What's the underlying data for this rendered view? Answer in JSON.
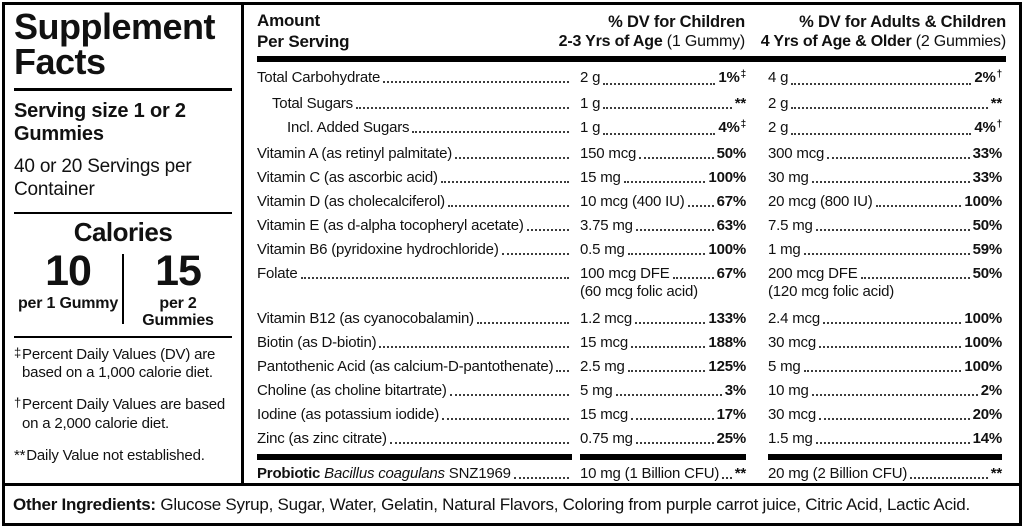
{
  "colors": {
    "ink": "#111111",
    "paper": "#ffffff"
  },
  "left_panel": {
    "title": "Supplement Facts",
    "serving_size": "Serving size 1 or 2 Gummies",
    "servings": "40 or 20 Servings per Container",
    "calories": {
      "title": "Calories",
      "columns": [
        {
          "value": "10",
          "caption": "per 1 Gummy"
        },
        {
          "value": "15",
          "caption": "per 2 Gummies"
        }
      ]
    },
    "footnotes": [
      {
        "symbol": "‡",
        "text": "Percent Daily Values (DV) are based on a 1,000 calorie diet."
      },
      {
        "symbol": "†",
        "text": "Percent Daily Values are based on a 2,000 calorie diet."
      },
      {
        "symbol": "**",
        "text": "Daily Value not established."
      }
    ]
  },
  "table": {
    "header": {
      "amount_line1": "Amount",
      "amount_line2": "Per Serving",
      "children_line1": "% DV for Children",
      "children_line2_bold": "2-3 Yrs of Age",
      "children_line2_normal": "(1 Gummy)",
      "adults_line1": "% DV for Adults & Children",
      "adults_line2_bold": "4 Yrs of Age & Older",
      "adults_line2_normal": "(2 Gummies)"
    },
    "rows": [
      {
        "name": "Total Carbohydrate",
        "indent": 0,
        "child": {
          "amount": "2 g",
          "pct": "1%",
          "sup": "‡"
        },
        "adult": {
          "amount": "4 g",
          "pct": "2%",
          "sup": "†"
        }
      },
      {
        "name": "Total Sugars",
        "indent": 1,
        "child": {
          "amount": "1 g",
          "pct": "**"
        },
        "adult": {
          "amount": "2 g",
          "pct": "**"
        }
      },
      {
        "name": "Incl. Added Sugars",
        "indent": 2,
        "child": {
          "amount": "1 g",
          "pct": "4%",
          "sup": "‡"
        },
        "adult": {
          "amount": "2 g",
          "pct": "4%",
          "sup": "†"
        }
      },
      {
        "name": "Vitamin A (as retinyl palmitate)",
        "child": {
          "amount": "150 mcg",
          "pct": "50%"
        },
        "adult": {
          "amount": "300 mcg",
          "pct": "33%"
        }
      },
      {
        "name": "Vitamin C (as ascorbic acid)",
        "child": {
          "amount": "15 mg",
          "pct": "100%"
        },
        "adult": {
          "amount": "30 mg",
          "pct": "33%"
        }
      },
      {
        "name": "Vitamin D (as cholecalciferol)",
        "child": {
          "amount": "10 mcg (400 IU)",
          "pct": "67%"
        },
        "adult": {
          "amount": "20 mcg (800 IU)",
          "pct": "100%"
        }
      },
      {
        "name": "Vitamin E (as d-alpha tocopheryl acetate)",
        "child": {
          "amount": "3.75 mg",
          "pct": "63%"
        },
        "adult": {
          "amount": "7.5 mg",
          "pct": "50%"
        }
      },
      {
        "name": "Vitamin B6 (pyridoxine hydrochloride)",
        "child": {
          "amount": "0.5 mg",
          "pct": "100%"
        },
        "adult": {
          "amount": "1 mg",
          "pct": "59%"
        }
      },
      {
        "name": "Folate",
        "child": {
          "amount": "100 mcg DFE",
          "pct": "67%",
          "sub": "(60 mcg folic acid)"
        },
        "adult": {
          "amount": "200 mcg DFE",
          "pct": "50%",
          "sub": "(120 mcg folic acid)"
        }
      },
      {
        "name": "Vitamin B12 (as cyanocobalamin)",
        "gap_before": true,
        "child": {
          "amount": "1.2 mcg",
          "pct": "133%"
        },
        "adult": {
          "amount": "2.4 mcg",
          "pct": "100%"
        }
      },
      {
        "name": "Biotin (as D-biotin)",
        "child": {
          "amount": "15 mcg",
          "pct": "188%"
        },
        "adult": {
          "amount": "30 mcg",
          "pct": "100%"
        }
      },
      {
        "name": "Pantothenic Acid (as calcium-D-pantothenate)",
        "child": {
          "amount": "2.5 mg",
          "pct": "125%"
        },
        "adult": {
          "amount": "5 mg",
          "pct": "100%"
        }
      },
      {
        "name": "Choline (as choline bitartrate)",
        "child": {
          "amount": "5 mg",
          "pct": "3%"
        },
        "adult": {
          "amount": "10 mg",
          "pct": "2%"
        }
      },
      {
        "name": "Iodine (as potassium iodide)",
        "child": {
          "amount": "15 mcg",
          "pct": "17%"
        },
        "adult": {
          "amount": "30 mcg",
          "pct": "20%"
        }
      },
      {
        "name": "Zinc (as zinc citrate)",
        "child": {
          "amount": "0.75 mg",
          "pct": "25%"
        },
        "adult": {
          "amount": "1.5 mg",
          "pct": "14%"
        }
      }
    ],
    "probiotic_row": {
      "name_parts": [
        {
          "text": "Probiotic ",
          "style": "bold"
        },
        {
          "text": "Bacillus coagulans",
          "style": "italic"
        },
        {
          "text": " SNZ1969",
          "style": "normal"
        }
      ],
      "child": {
        "amount": "10 mg (1 Billion CFU)",
        "pct": "**"
      },
      "adult": {
        "amount": "20 mg (2 Billion CFU)",
        "pct": "**"
      }
    }
  },
  "other_ingredients": {
    "label": "Other Ingredients:",
    "text": "Glucose Syrup, Sugar, Water, Gelatin, Natural Flavors, Coloring from purple carrot juice, Citric Acid, Lactic Acid."
  }
}
